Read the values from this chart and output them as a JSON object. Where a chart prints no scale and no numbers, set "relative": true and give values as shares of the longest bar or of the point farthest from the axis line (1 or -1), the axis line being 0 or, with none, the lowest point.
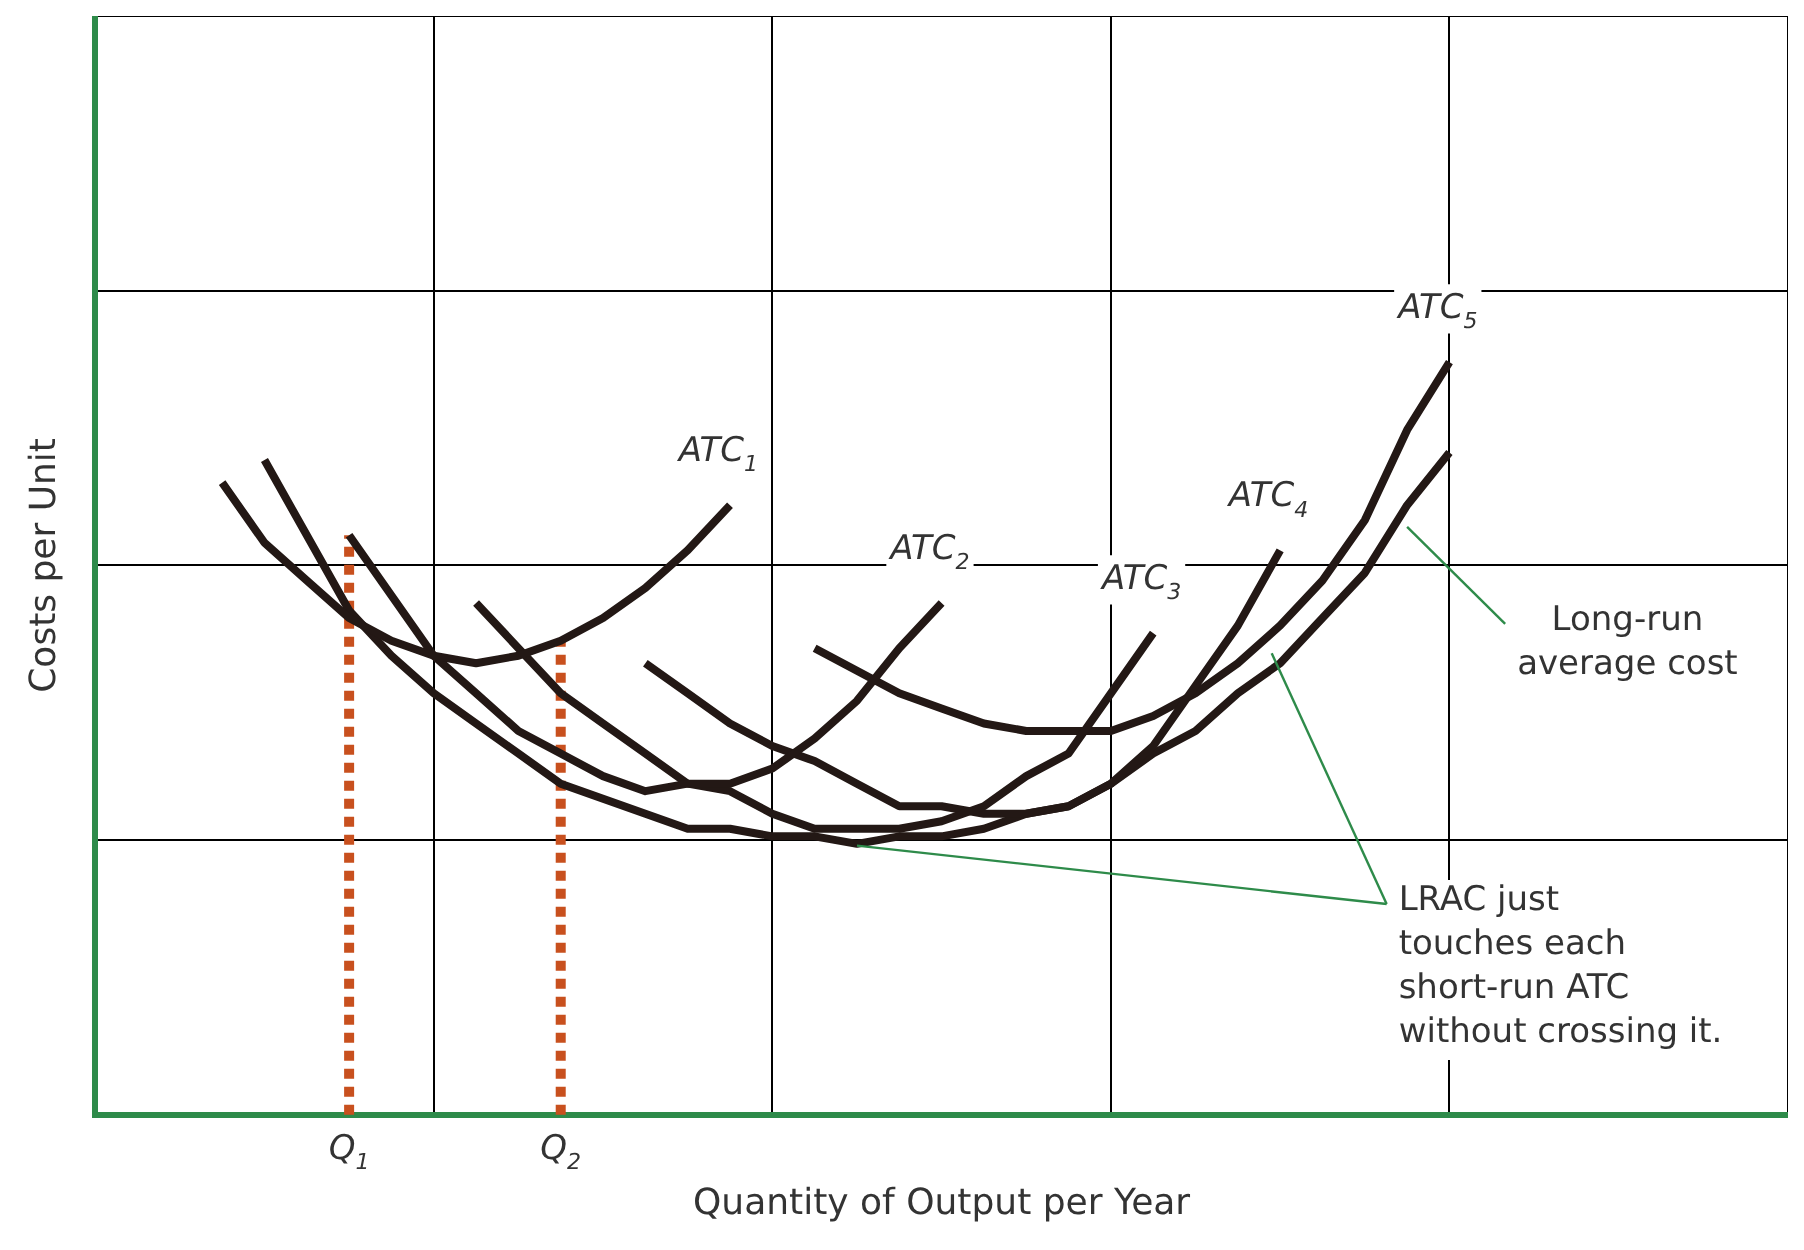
{
  "chart_data": {
    "type": "line",
    "relative": true,
    "xlabel": "Quantity of Output per Year",
    "ylabel": "Costs per Unit",
    "categories": [
      null,
      null,
      null,
      null,
      null,
      null,
      "Q$_{1}$",
      null,
      null,
      null,
      null,
      "Q$_{2}$",
      null,
      null,
      null,
      null,
      null,
      null,
      null,
      null,
      null,
      null,
      null,
      null,
      null,
      null,
      null,
      null,
      null,
      null,
      null,
      null,
      null,
      null,
      null,
      null,
      null,
      null,
      null,
      null,
      null
    ],
    "grid": true,
    "legend": false,
    "series": [
      {
        "name": "ATC$_{1}$",
        "color": "#231815",
        "values": [
          null,
          null,
          null,
          0.84,
          0.76,
          0.71,
          0.66,
          0.63,
          0.61,
          0.6,
          0.61,
          0.63,
          0.66,
          0.7,
          0.75,
          0.81,
          null,
          null,
          null,
          null,
          null,
          null,
          null,
          null,
          null,
          null,
          null,
          null,
          null,
          null,
          null,
          null,
          null,
          null,
          null,
          null,
          null,
          null,
          null,
          null,
          null
        ]
      },
      {
        "name": "ATC$_{2}$",
        "color": "#231815",
        "values": [
          null,
          null,
          null,
          null,
          null,
          null,
          0.77,
          0.69,
          0.61,
          0.56,
          0.51,
          0.48,
          0.45,
          0.43,
          0.44,
          0.44,
          0.46,
          0.5,
          0.55,
          0.62,
          0.68,
          null,
          null,
          null,
          null,
          null,
          null,
          null,
          null,
          null,
          null,
          null,
          null,
          null,
          null,
          null,
          null,
          null,
          null,
          null,
          null
        ]
      },
      {
        "name": "ATC$_{3}$",
        "color": "#231815",
        "values": [
          null,
          null,
          null,
          null,
          null,
          null,
          null,
          null,
          null,
          0.68,
          0.62,
          0.56,
          0.52,
          0.48,
          0.44,
          0.43,
          0.4,
          0.38,
          0.38,
          0.38,
          0.39,
          0.41,
          0.45,
          0.48,
          0.56,
          0.64,
          null,
          null,
          null,
          null,
          null,
          null,
          null,
          null,
          null,
          null,
          null,
          null,
          null,
          null,
          null
        ]
      },
      {
        "name": "ATC$_{4}$",
        "color": "#231815",
        "values": [
          null,
          null,
          null,
          null,
          null,
          null,
          null,
          null,
          null,
          null,
          null,
          null,
          null,
          0.6,
          0.56,
          0.52,
          0.49,
          0.47,
          0.44,
          0.41,
          0.41,
          0.4,
          0.4,
          0.41,
          0.44,
          0.49,
          0.57,
          0.65,
          0.75,
          null,
          null,
          null,
          null,
          null,
          null,
          null,
          null,
          null,
          null,
          null,
          null
        ]
      },
      {
        "name": "ATC$_{5}$",
        "color": "#231815",
        "values": [
          null,
          null,
          null,
          null,
          null,
          null,
          null,
          null,
          null,
          null,
          null,
          null,
          null,
          null,
          null,
          null,
          null,
          0.62,
          0.59,
          0.56,
          0.54,
          0.52,
          0.51,
          0.51,
          0.51,
          0.53,
          0.56,
          0.6,
          0.65,
          0.71,
          0.79,
          0.91,
          1.0,
          null,
          null,
          null,
          null,
          null,
          null,
          null,
          null
        ]
      },
      {
        "color": "#231815",
        "values": [
          null,
          null,
          null,
          null,
          0.87,
          0.77,
          0.67,
          0.61,
          0.56,
          0.52,
          0.48,
          0.44,
          0.42,
          0.4,
          0.38,
          0.38,
          0.37,
          0.37,
          0.36,
          0.37,
          0.37,
          0.38,
          0.4,
          0.41,
          0.44,
          0.48,
          0.51,
          0.56,
          0.6,
          0.66,
          0.72,
          0.81,
          0.88,
          null,
          null,
          null,
          null,
          null,
          null,
          null,
          null
        ]
      }
    ],
    "ref_lines": [
      {
        "axis": "x",
        "value": "Q$_{1}$",
        "color": "#c8501e",
        "line_style": "dotted"
      },
      {
        "axis": "x",
        "value": "Q$_{2}$",
        "color": "#c8501e",
        "line_style": "dotted"
      }
    ],
    "annotations": [
      "Long-run\naverage cost",
      "LRAC just\ntouches each\nshort-run ATC\nwithout crossing it."
    ]
  }
}
